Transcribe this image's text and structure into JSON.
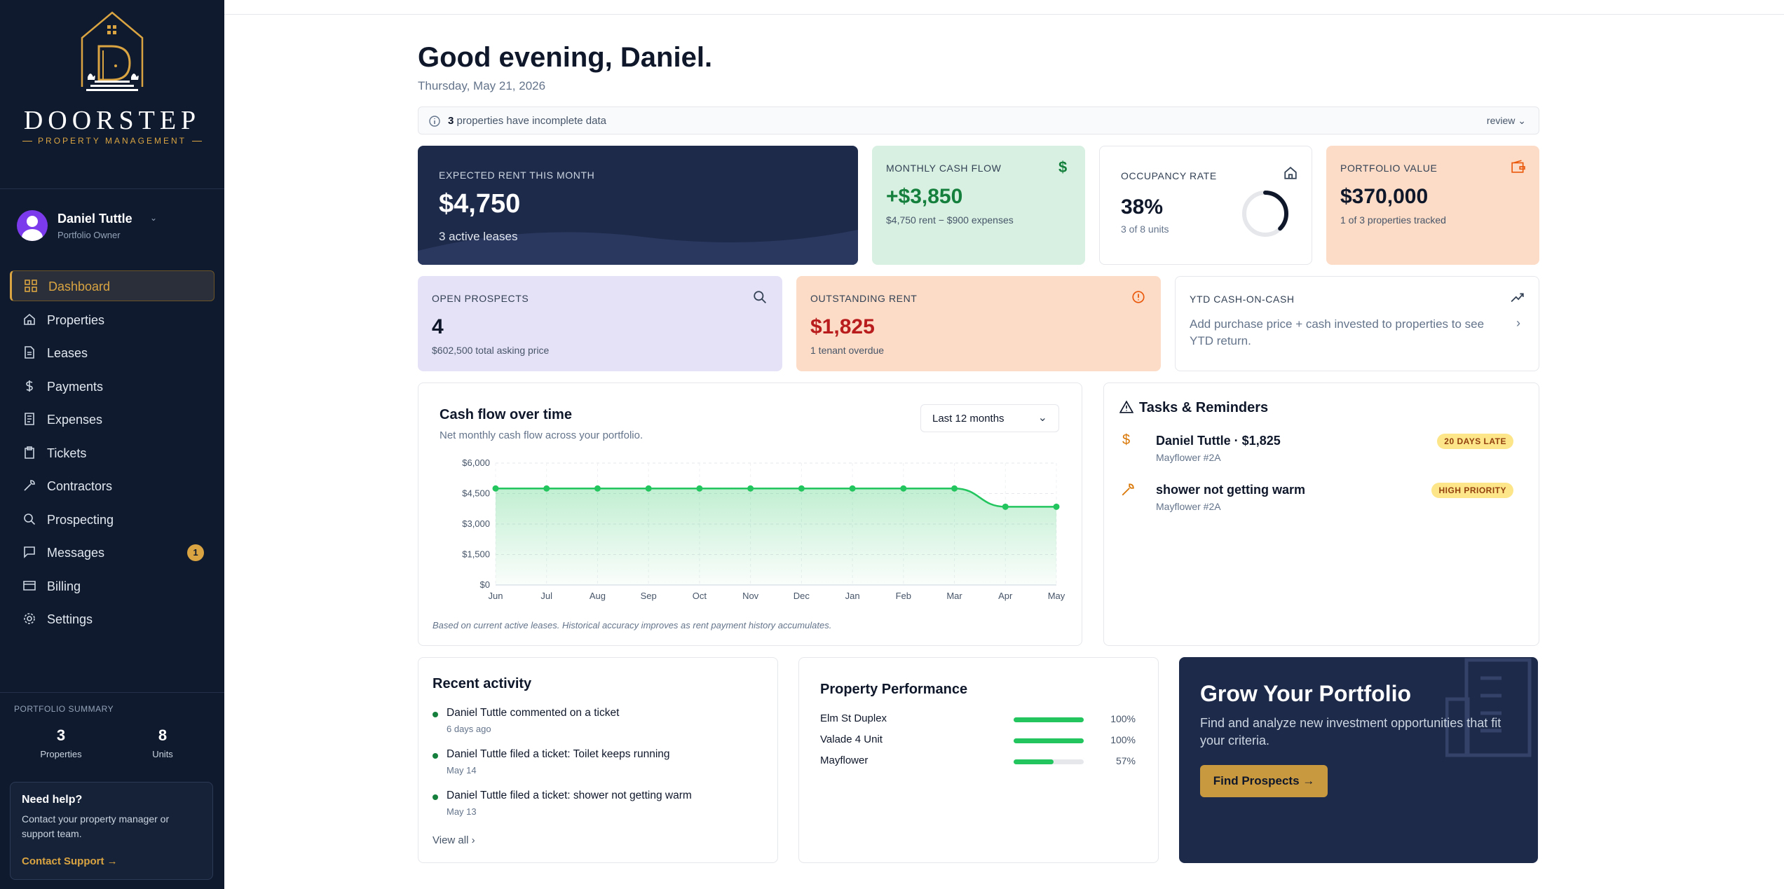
{
  "brand": {
    "name": "DOORSTEP",
    "tagline": "PROPERTY MANAGEMENT"
  },
  "user": {
    "name": "Daniel Tuttle",
    "role": "Portfolio Owner"
  },
  "nav": [
    {
      "label": "Dashboard",
      "icon": "grid-icon",
      "active": true
    },
    {
      "label": "Properties",
      "icon": "home-icon"
    },
    {
      "label": "Leases",
      "icon": "document-icon"
    },
    {
      "label": "Payments",
      "icon": "dollar-icon"
    },
    {
      "label": "Expenses",
      "icon": "receipt-icon"
    },
    {
      "label": "Tickets",
      "icon": "clipboard-icon"
    },
    {
      "label": "Contractors",
      "icon": "wrench-icon"
    },
    {
      "label": "Prospecting",
      "icon": "search-icon"
    },
    {
      "label": "Messages",
      "icon": "chat-icon",
      "badge": "1"
    },
    {
      "label": "Billing",
      "icon": "card-icon"
    },
    {
      "label": "Settings",
      "icon": "gear-icon"
    }
  ],
  "portfolio_summary": {
    "title": "PORTFOLIO SUMMARY",
    "properties": "3",
    "properties_label": "Properties",
    "units": "8",
    "units_label": "Units"
  },
  "help": {
    "title": "Need help?",
    "text": "Contact your property manager or support team.",
    "link": "Contact Support →"
  },
  "header": {
    "greeting": "Good evening, Daniel.",
    "date": "Thursday, May 21, 2026"
  },
  "notice": {
    "count": "3",
    "text": "properties have incomplete data",
    "action": "review"
  },
  "cards": {
    "expected_rent": {
      "label": "EXPECTED RENT THIS MONTH",
      "value": "$4,750",
      "sub": "3 active leases"
    },
    "cash_flow": {
      "label": "MONTHLY CASH FLOW",
      "value": "+$3,850",
      "sub": "$4,750 rent − $900 expenses"
    },
    "occupancy": {
      "label": "OCCUPANCY RATE",
      "value": "38%",
      "sub": "3 of 8 units",
      "fraction": 0.375
    },
    "portfolio_value": {
      "label": "PORTFOLIO VALUE",
      "value": "$370,000",
      "sub": "1 of 3 properties tracked"
    },
    "prospects": {
      "label": "OPEN PROSPECTS",
      "value": "4",
      "sub": "$602,500 total asking price"
    },
    "outstanding": {
      "label": "OUTSTANDING RENT",
      "value": "$1,825",
      "sub": "1 tenant overdue"
    },
    "ytd": {
      "label": "YTD CASH-ON-CASH",
      "text": "Add purchase price + cash invested to properties to see YTD return."
    }
  },
  "cashflow": {
    "title": "Cash flow over time",
    "subtitle": "Net monthly cash flow across your portfolio.",
    "range": "Last 12 months",
    "footnote": "Based on current active leases. Historical accuracy improves as rent payment history accumulates."
  },
  "chart_data": {
    "type": "area",
    "categories": [
      "Jun",
      "Jul",
      "Aug",
      "Sep",
      "Oct",
      "Nov",
      "Dec",
      "Jan",
      "Feb",
      "Mar",
      "Apr",
      "May"
    ],
    "series": [
      {
        "values": [
          4750,
          4750,
          4750,
          4750,
          4750,
          4750,
          4750,
          4750,
          4750,
          4750,
          3850,
          3850
        ]
      }
    ],
    "ylim": [
      0,
      6000
    ],
    "yticks": [
      "$0",
      "$1,500",
      "$3,000",
      "$4,500",
      "$6,000"
    ],
    "ytick_values": [
      0,
      1500,
      3000,
      4500,
      6000
    ],
    "grid": true,
    "color": "#22c55e"
  },
  "tasks": {
    "title": "Tasks & Reminders",
    "items": [
      {
        "title": "Daniel Tuttle · $1,825",
        "sub": "Mayflower #2A",
        "badge": "20 DAYS LATE"
      },
      {
        "title": "shower not getting warm",
        "sub": "Mayflower #2A",
        "badge": "HIGH PRIORITY"
      }
    ]
  },
  "activity": {
    "title": "Recent activity",
    "items": [
      {
        "text": "Daniel Tuttle commented on a ticket",
        "time": "6 days ago"
      },
      {
        "text": "Daniel Tuttle filed a ticket: Toilet keeps running",
        "time": "May 14"
      },
      {
        "text": "Daniel Tuttle filed a ticket: shower not getting warm",
        "time": "May 13"
      }
    ],
    "view_all": "View all"
  },
  "performance": {
    "title": "Property Performance",
    "items": [
      {
        "name": "Elm St Duplex",
        "pct": "100%",
        "value": 1.0
      },
      {
        "name": "Valade 4 Unit",
        "pct": "100%",
        "value": 1.0
      },
      {
        "name": "Mayflower",
        "pct": "57%",
        "value": 0.57
      }
    ]
  },
  "grow": {
    "title": "Grow Your Portfolio",
    "text": "Find and analyze new investment opportunities that fit your criteria.",
    "button": "Find Prospects →"
  }
}
